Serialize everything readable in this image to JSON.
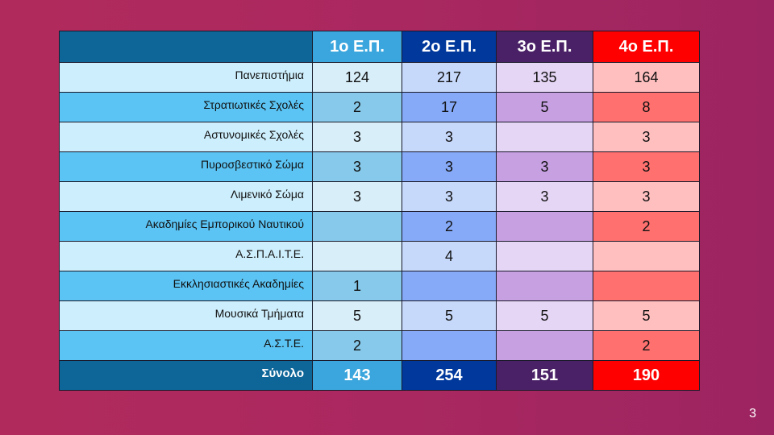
{
  "table": {
    "headers": [
      "",
      "1ο Ε.Π.",
      "2ο Ε.Π.",
      "3ο  Ε.Π.",
      "4ο Ε.Π."
    ],
    "rows": [
      {
        "label": "Πανεπιστήμια",
        "values": [
          "124",
          "217",
          "135",
          "164"
        ]
      },
      {
        "label": "Στρατιωτικές Σχολές",
        "values": [
          "2",
          "17",
          "5",
          "8"
        ]
      },
      {
        "label": "Αστυνομικές Σχολές",
        "values": [
          "3",
          "3",
          "",
          "3"
        ]
      },
      {
        "label": "Πυροσβεστικό Σώμα",
        "values": [
          "3",
          "3",
          "3",
          "3"
        ]
      },
      {
        "label": "Λιμενικό Σώμα",
        "values": [
          "3",
          "3",
          "3",
          "3"
        ]
      },
      {
        "label": "Ακαδημίες Εμπορικού Ναυτικού",
        "values": [
          "",
          "2",
          "",
          "2"
        ]
      },
      {
        "label": "Α.Σ.Π.Α.Ι.Τ.Ε.",
        "values": [
          "",
          "4",
          "",
          ""
        ]
      },
      {
        "label": "Εκκλησιαστικές Ακαδημίες",
        "values": [
          "1",
          "",
          "",
          ""
        ]
      },
      {
        "label": "Μουσικά Τμήματα",
        "values": [
          "5",
          "5",
          "5",
          "5"
        ]
      },
      {
        "label": "Α.Σ.Τ.Ε.",
        "values": [
          "2",
          "",
          "",
          "2"
        ]
      }
    ],
    "total": {
      "label": "Σύνολο",
      "values": [
        "143",
        "254",
        "151",
        "190"
      ]
    }
  },
  "colors": {
    "col1_header": "#3aa6dd",
    "col2_header": "#00389c",
    "col3_header": "#4a2166",
    "col4_header": "#ff0000",
    "label_header": "#0d6598"
  },
  "slide": {
    "page_number": "3"
  }
}
